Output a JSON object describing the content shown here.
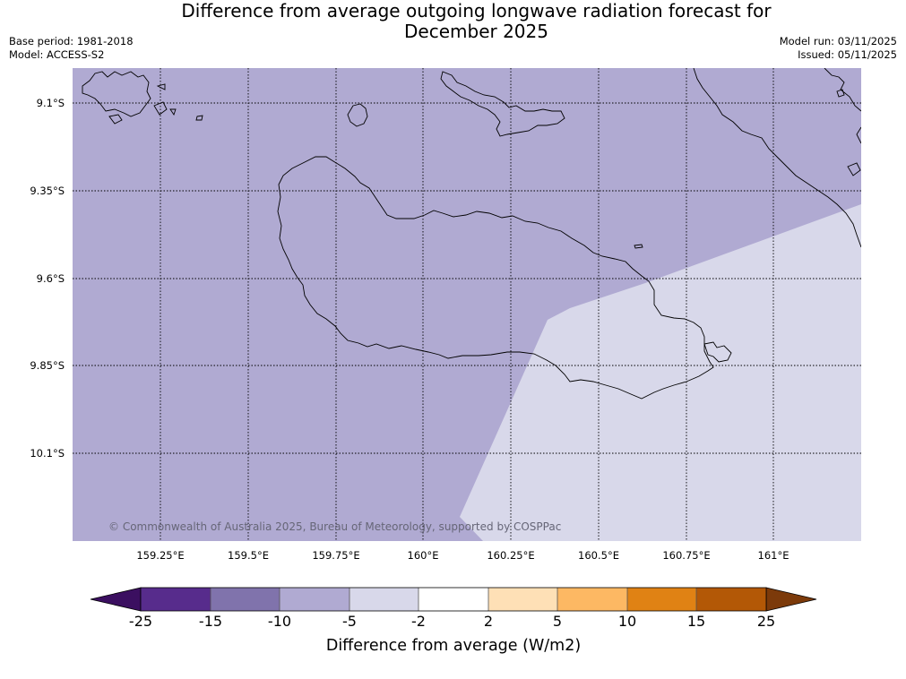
{
  "header": {
    "title_line1": "Difference from average outgoing longwave radiation forecast for",
    "title_line2": "December 2025",
    "base_period": "Base period: 1981-2018",
    "model": "Model: ACCESS-S2",
    "model_run": "Model run: 03/11/2025",
    "issued": "Issued: 05/11/2025"
  },
  "map": {
    "latitude_labels": [
      "9.1°S",
      "9.35°S",
      "9.6°S",
      "9.85°S",
      "10.1°S"
    ],
    "longitude_labels": [
      "159.25°E",
      "159.5°E",
      "159.75°E",
      "160°E",
      "160.25°E",
      "160.5°E",
      "160.75°E",
      "161°E"
    ],
    "copyright": "© Commonwealth of Australia 2025, Bureau of Meteorology, supported by COSPPac",
    "regions": [
      {
        "category": "-10 to -5",
        "color": "#b0aad2"
      },
      {
        "category": "-5 to -2",
        "color": "#d8d8ea"
      }
    ]
  },
  "colorbar": {
    "title": "Difference from average (W/m2)",
    "ticks": [
      "-25",
      "-15",
      "-10",
      "-5",
      "-2",
      "2",
      "5",
      "10",
      "15",
      "25"
    ],
    "under_color": "#3b0f60",
    "over_color": "#7c3a0a",
    "colors": [
      "#572c8c",
      "#8073ac",
      "#b0aad2",
      "#d8d8ea",
      "#ffffff",
      "#fee0b6",
      "#fdb863",
      "#e08214",
      "#b35806"
    ]
  }
}
